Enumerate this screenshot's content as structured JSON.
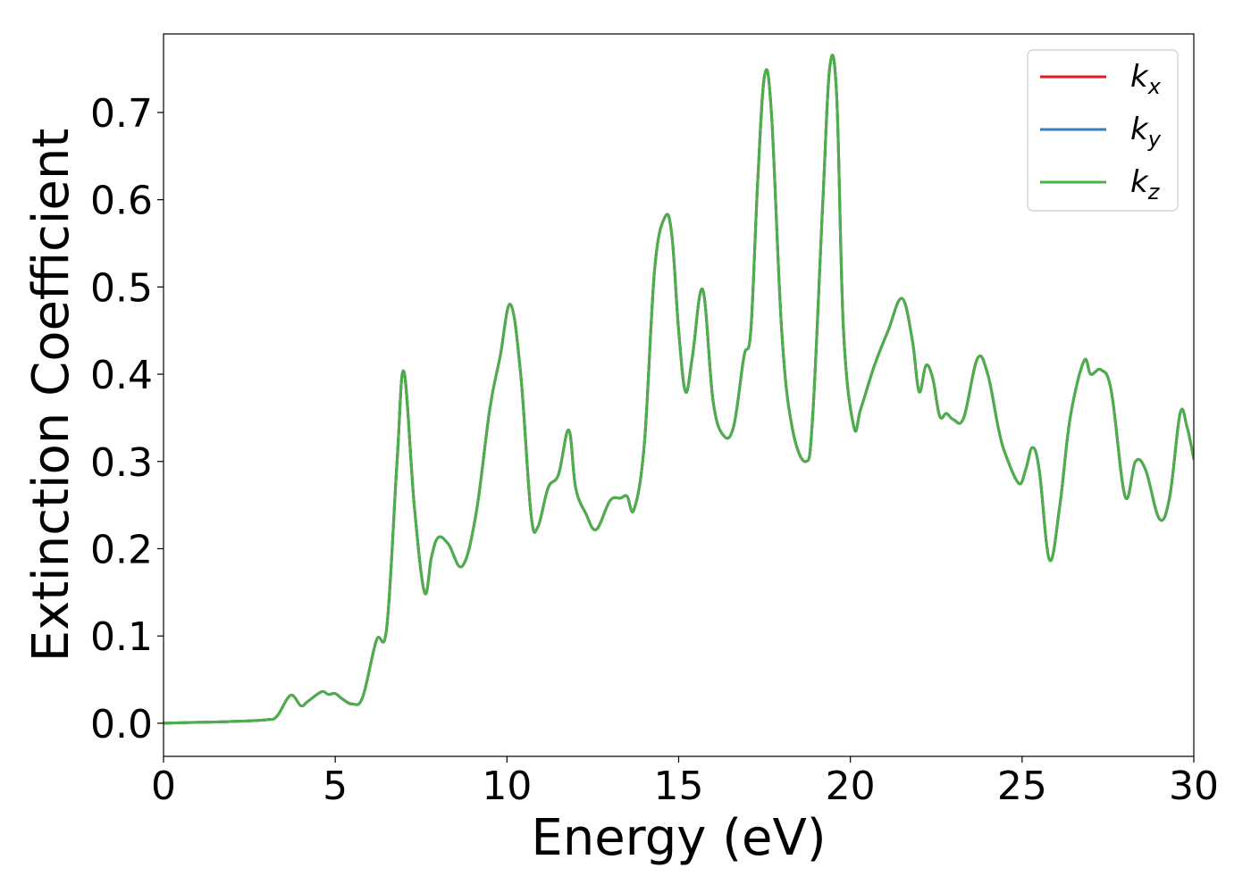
{
  "chart_data": {
    "type": "line",
    "title": "",
    "xlabel": "Energy (eV)",
    "ylabel": "Extinction Coefficient",
    "xlim": [
      0,
      30
    ],
    "ylim": [
      -0.038,
      0.79
    ],
    "xticks": [
      0,
      5,
      10,
      15,
      20,
      25,
      30
    ],
    "xtick_labels": [
      "0",
      "5",
      "10",
      "15",
      "20",
      "25",
      "30"
    ],
    "yticks": [
      0.0,
      0.1,
      0.2,
      0.3,
      0.4,
      0.5,
      0.6,
      0.7
    ],
    "ytick_labels": [
      "0.0",
      "0.1",
      "0.2",
      "0.3",
      "0.4",
      "0.5",
      "0.6",
      "0.7"
    ],
    "grid": false,
    "legend_position": "top-right",
    "x": [
      0,
      1,
      2,
      3,
      3.3,
      3.7,
      4.0,
      4.2,
      4.6,
      4.8,
      5.0,
      5.2,
      5.5,
      5.8,
      6.2,
      6.5,
      6.8,
      7.0,
      7.3,
      7.6,
      7.8,
      8.0,
      8.3,
      8.7,
      9.1,
      9.5,
      9.8,
      10.1,
      10.4,
      10.7,
      10.9,
      11.2,
      11.5,
      11.8,
      12.0,
      12.3,
      12.6,
      13.0,
      13.3,
      13.5,
      13.7,
      14.0,
      14.3,
      14.6,
      14.8,
      15.0,
      15.2,
      15.4,
      15.7,
      16.0,
      16.3,
      16.6,
      16.9,
      17.1,
      17.3,
      17.5,
      17.7,
      18.0,
      18.3,
      18.7,
      18.9,
      19.2,
      19.4,
      19.6,
      19.8,
      20.1,
      20.3,
      20.7,
      21.1,
      21.5,
      21.8,
      22.0,
      22.2,
      22.4,
      22.6,
      22.8,
      23.0,
      23.3,
      23.7,
      24.0,
      24.3,
      24.5,
      24.9,
      25.1,
      25.3,
      25.5,
      25.8,
      26.1,
      26.4,
      26.8,
      27.0,
      27.3,
      27.6,
      28.0,
      28.3,
      28.6,
      29.0,
      29.3,
      29.6,
      29.8,
      30.0
    ],
    "series": [
      {
        "name": "k_x",
        "color": "#e41a1c",
        "values": [
          0.0,
          0.001,
          0.002,
          0.004,
          0.008,
          0.032,
          0.02,
          0.025,
          0.036,
          0.033,
          0.034,
          0.028,
          0.022,
          0.03,
          0.095,
          0.11,
          0.3,
          0.403,
          0.25,
          0.15,
          0.19,
          0.213,
          0.205,
          0.18,
          0.24,
          0.36,
          0.42,
          0.48,
          0.4,
          0.24,
          0.225,
          0.27,
          0.285,
          0.336,
          0.27,
          0.24,
          0.222,
          0.255,
          0.258,
          0.26,
          0.245,
          0.32,
          0.52,
          0.58,
          0.56,
          0.45,
          0.38,
          0.42,
          0.497,
          0.37,
          0.33,
          0.34,
          0.42,
          0.45,
          0.62,
          0.742,
          0.7,
          0.45,
          0.34,
          0.3,
          0.35,
          0.6,
          0.752,
          0.72,
          0.45,
          0.34,
          0.36,
          0.41,
          0.45,
          0.487,
          0.44,
          0.38,
          0.41,
          0.395,
          0.352,
          0.355,
          0.348,
          0.35,
          0.418,
          0.4,
          0.34,
          0.31,
          0.275,
          0.29,
          0.316,
          0.29,
          0.187,
          0.25,
          0.35,
          0.415,
          0.4,
          0.405,
          0.38,
          0.26,
          0.3,
          0.29,
          0.234,
          0.26,
          0.355,
          0.34,
          0.303
        ]
      },
      {
        "name": "k_y",
        "color": "#377eb8",
        "values": [
          0.0,
          0.001,
          0.002,
          0.004,
          0.008,
          0.032,
          0.02,
          0.025,
          0.036,
          0.033,
          0.034,
          0.028,
          0.022,
          0.03,
          0.095,
          0.11,
          0.3,
          0.403,
          0.25,
          0.15,
          0.19,
          0.213,
          0.205,
          0.18,
          0.24,
          0.36,
          0.42,
          0.48,
          0.4,
          0.24,
          0.225,
          0.27,
          0.285,
          0.336,
          0.27,
          0.24,
          0.222,
          0.255,
          0.258,
          0.26,
          0.245,
          0.32,
          0.52,
          0.58,
          0.56,
          0.45,
          0.38,
          0.42,
          0.497,
          0.37,
          0.33,
          0.34,
          0.42,
          0.45,
          0.62,
          0.742,
          0.7,
          0.45,
          0.34,
          0.3,
          0.35,
          0.6,
          0.752,
          0.72,
          0.45,
          0.34,
          0.36,
          0.41,
          0.45,
          0.487,
          0.44,
          0.38,
          0.41,
          0.395,
          0.352,
          0.355,
          0.348,
          0.35,
          0.418,
          0.4,
          0.34,
          0.31,
          0.275,
          0.29,
          0.316,
          0.29,
          0.187,
          0.25,
          0.35,
          0.415,
          0.4,
          0.405,
          0.38,
          0.26,
          0.3,
          0.29,
          0.234,
          0.26,
          0.355,
          0.34,
          0.303
        ]
      },
      {
        "name": "k_z",
        "color": "#4daf4a",
        "values": [
          0.0,
          0.001,
          0.002,
          0.004,
          0.008,
          0.032,
          0.02,
          0.025,
          0.036,
          0.033,
          0.034,
          0.028,
          0.022,
          0.03,
          0.095,
          0.11,
          0.3,
          0.403,
          0.25,
          0.15,
          0.19,
          0.213,
          0.205,
          0.18,
          0.24,
          0.36,
          0.42,
          0.48,
          0.4,
          0.24,
          0.225,
          0.27,
          0.285,
          0.336,
          0.27,
          0.24,
          0.222,
          0.255,
          0.258,
          0.26,
          0.245,
          0.32,
          0.52,
          0.58,
          0.56,
          0.45,
          0.38,
          0.42,
          0.497,
          0.37,
          0.33,
          0.34,
          0.42,
          0.45,
          0.62,
          0.742,
          0.7,
          0.45,
          0.34,
          0.3,
          0.35,
          0.6,
          0.752,
          0.72,
          0.45,
          0.34,
          0.36,
          0.41,
          0.45,
          0.487,
          0.44,
          0.38,
          0.41,
          0.395,
          0.352,
          0.355,
          0.348,
          0.35,
          0.418,
          0.4,
          0.34,
          0.31,
          0.275,
          0.29,
          0.316,
          0.29,
          0.187,
          0.25,
          0.35,
          0.415,
          0.4,
          0.405,
          0.38,
          0.26,
          0.3,
          0.29,
          0.234,
          0.26,
          0.355,
          0.34,
          0.303
        ]
      }
    ],
    "legend": [
      {
        "base": "k",
        "sub": "x",
        "color": "#e41a1c"
      },
      {
        "base": "k",
        "sub": "y",
        "color": "#377eb8"
      },
      {
        "base": "k",
        "sub": "z",
        "color": "#4daf4a"
      }
    ]
  }
}
